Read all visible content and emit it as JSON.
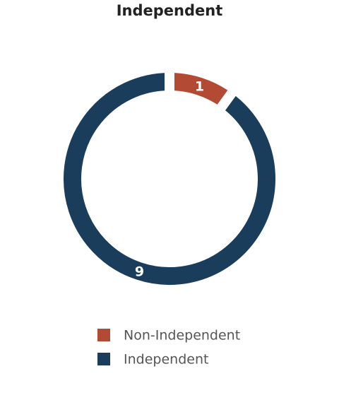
{
  "chart_data": {
    "type": "donut",
    "title": "Independent",
    "categories": [
      "Non-Independent",
      "Independent"
    ],
    "values": [
      1,
      9
    ],
    "colors": [
      "#b34a33",
      "#1b3d5c"
    ],
    "legend": "bottom"
  }
}
